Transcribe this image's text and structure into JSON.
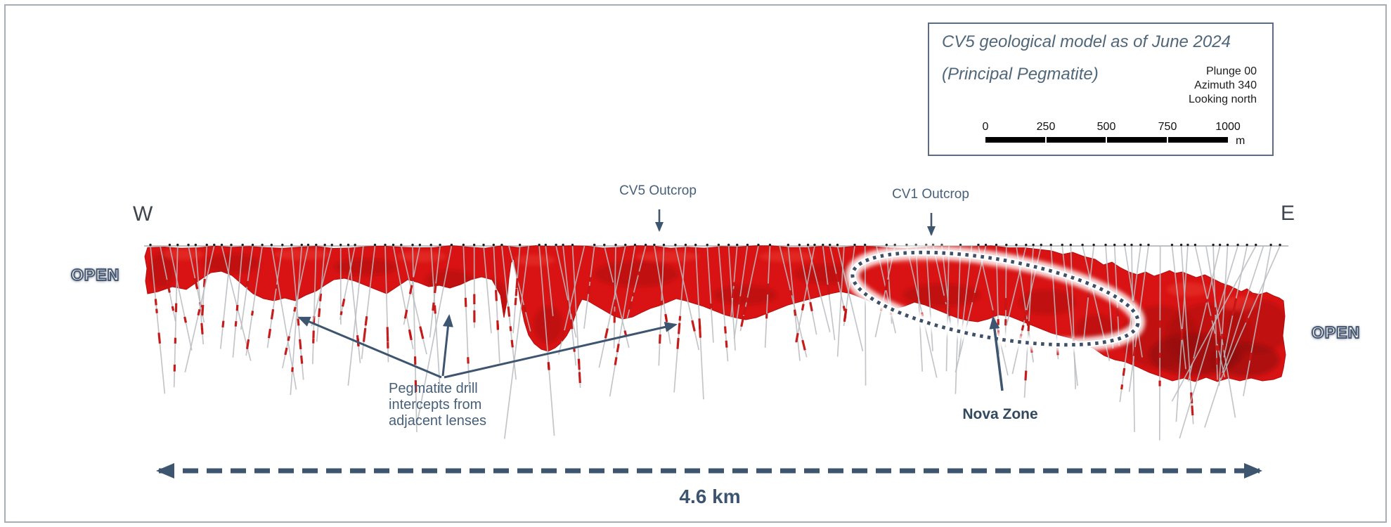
{
  "legend": {
    "title_line1": "CV5 geological model as of June 2024",
    "title_line2": "(Principal Pegmatite)",
    "orientation": [
      "Plunge 00",
      "Azimuth 340",
      "Looking north"
    ],
    "scale": {
      "ticks": [
        "0",
        "250",
        "500",
        "750",
        "1000"
      ],
      "unit": "m"
    }
  },
  "section": {
    "west_label": "W",
    "east_label": "E",
    "open_left": "OPEN",
    "open_right": "OPEN",
    "cv5_outcrop": "CV5 Outcrop",
    "cv1_outcrop": "CV1 Outcrop",
    "nova_zone": "Nova Zone",
    "note": {
      "lines": [
        "Pegmatite drill",
        "intercepts from",
        "adjacent lenses"
      ]
    },
    "distance": "4.6 km"
  },
  "colors": {
    "pegmatite_red": "#d91313",
    "pegmatite_dark": "#9e0a0a",
    "pegmatite_deep": "#860707",
    "pegmatite_highlight": "#f8574a",
    "drill_gray": "#b9bcc0",
    "collar_black": "#202020",
    "intercept_red": "#c51212",
    "annotation_blue": "#3e5570",
    "surface_gray": "#9aa0a6",
    "nova_dot_blue": "#3e5068"
  }
}
